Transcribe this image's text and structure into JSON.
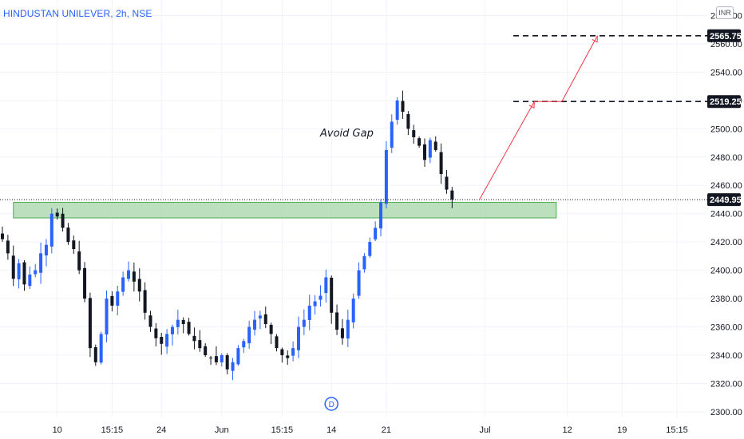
{
  "symbol_title": "HINDUSTAN UNILEVER, 2h, NSE",
  "currency": "INR",
  "colors": {
    "up": "#2962ff",
    "down": "#131722",
    "zone_fill": "#a5d6a7",
    "zone_border": "#4caf50",
    "arrow": "#f23645",
    "grid": "#f0f3fa",
    "price_label_bg": "#131722"
  },
  "chart_data": {
    "type": "candlestick",
    "ylim": [
      2296,
      2591
    ],
    "y_ticks": [
      2300,
      2320,
      2340,
      2360,
      2380,
      2400,
      2420,
      2440,
      2460,
      2480,
      2500,
      2520,
      2540,
      2560,
      2580
    ],
    "x_ticks": [
      {
        "label": "10",
        "idx": 10
      },
      {
        "label": "15:15",
        "idx": 20
      },
      {
        "label": "24",
        "idx": 29
      },
      {
        "label": "Jun",
        "idx": 40
      },
      {
        "label": "15:15",
        "idx": 51
      },
      {
        "label": "14",
        "idx": 60
      },
      {
        "label": "21",
        "idx": 70
      },
      {
        "label": "Jul",
        "idx": 88
      },
      {
        "label": "12",
        "idx": 103
      },
      {
        "label": "19",
        "idx": 113
      },
      {
        "label": "15:15",
        "idx": 123
      }
    ],
    "bar_spacing": 6.87,
    "last_price": "2449.95",
    "levels": [
      "2519.25",
      "2565.75"
    ],
    "zone": {
      "low": 2437,
      "high": 2448,
      "idx_start": 2,
      "idx_end": 101
    },
    "arrow_path": [
      {
        "idx": 87,
        "price": 2450
      },
      {
        "idx": 97,
        "price": 2519.25
      },
      {
        "idx": 102,
        "price": 2519.25
      },
      {
        "idx": 108.5,
        "price": 2565.75
      }
    ],
    "dividend_marker": {
      "label": "D",
      "idx": 60
    },
    "annotation": {
      "text": "Avoid Gap"
    },
    "close_path": [
      2422,
      2412,
      2394,
      2405,
      2390,
      2397,
      2400,
      2412,
      2418,
      2440,
      2438,
      2430,
      2420,
      2415,
      2400,
      2380,
      2345,
      2335,
      2355,
      2380,
      2375,
      2385,
      2395,
      2400,
      2392,
      2385,
      2370,
      2360,
      2352,
      2348,
      2355,
      2360,
      2365,
      2362,
      2355,
      2350,
      2345,
      2340,
      2338,
      2335,
      2340,
      2330,
      2335,
      2345,
      2350,
      2360,
      2365,
      2368,
      2362,
      2355,
      2345,
      2340,
      2338,
      2345,
      2360,
      2365,
      2375,
      2378,
      2382,
      2395,
      2370,
      2358,
      2352,
      2365,
      2380,
      2400,
      2410,
      2420,
      2430,
      2448,
      2485,
      2505,
      2520,
      2512,
      2500,
      2494,
      2488,
      2478,
      2492,
      2485,
      2468,
      2457,
      2450
    ],
    "seed": 7
  }
}
